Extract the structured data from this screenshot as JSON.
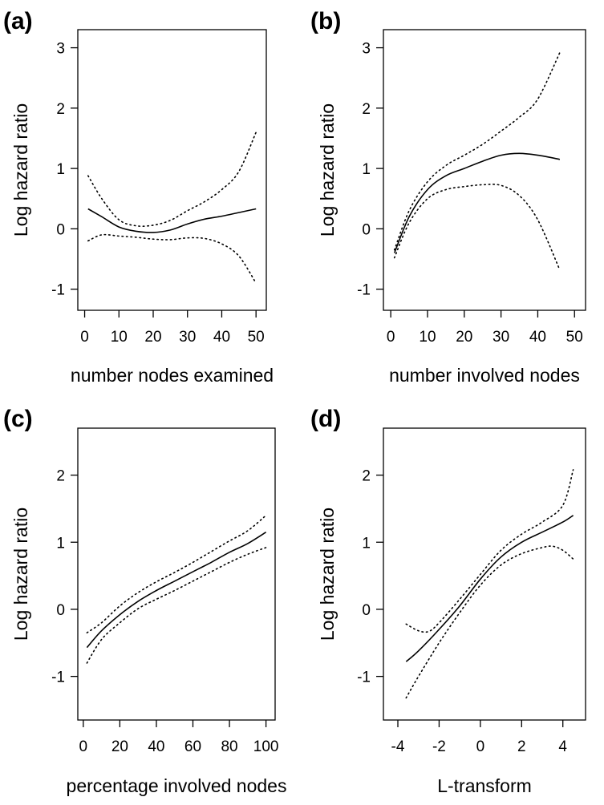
{
  "chart_data": [
    {
      "type": "line",
      "panel_label": "(a)",
      "xlabel": "number nodes examined",
      "ylabel": "Log hazard ratio",
      "xticks": [
        0,
        10,
        20,
        30,
        40,
        50
      ],
      "yticks": [
        -1,
        0,
        1,
        2,
        3
      ],
      "xlim": [
        -2,
        53
      ],
      "ylim": [
        -1.35,
        3.3
      ],
      "series": [
        {
          "role": "fit",
          "x": [
            1,
            5,
            10,
            15,
            20,
            25,
            30,
            35,
            40,
            45,
            50
          ],
          "y": [
            0.33,
            0.2,
            0.03,
            -0.04,
            -0.06,
            -0.02,
            0.08,
            0.16,
            0.21,
            0.27,
            0.33
          ]
        },
        {
          "role": "upper",
          "x": [
            1,
            5,
            10,
            15,
            20,
            25,
            30,
            35,
            40,
            45,
            50
          ],
          "y": [
            0.88,
            0.5,
            0.15,
            0.05,
            0.06,
            0.14,
            0.3,
            0.45,
            0.65,
            0.95,
            1.6
          ]
        },
        {
          "role": "lower",
          "x": [
            1,
            5,
            10,
            15,
            20,
            25,
            30,
            35,
            40,
            45,
            50
          ],
          "y": [
            -0.2,
            -0.1,
            -0.12,
            -0.14,
            -0.17,
            -0.18,
            -0.15,
            -0.16,
            -0.25,
            -0.45,
            -0.9
          ]
        }
      ]
    },
    {
      "type": "line",
      "panel_label": "(b)",
      "xlabel": "number involved nodes",
      "ylabel": "Log hazard ratio",
      "xticks": [
        0,
        10,
        20,
        30,
        40,
        50
      ],
      "yticks": [
        -1,
        0,
        1,
        2,
        3
      ],
      "xlim": [
        -2,
        53
      ],
      "ylim": [
        -1.35,
        3.3
      ],
      "series": [
        {
          "role": "fit",
          "x": [
            1,
            5,
            10,
            15,
            20,
            25,
            30,
            35,
            40,
            46
          ],
          "y": [
            -0.4,
            0.2,
            0.65,
            0.88,
            1.0,
            1.12,
            1.22,
            1.25,
            1.22,
            1.15
          ]
        },
        {
          "role": "upper",
          "x": [
            1,
            5,
            10,
            15,
            20,
            25,
            30,
            35,
            40,
            46
          ],
          "y": [
            -0.35,
            0.3,
            0.78,
            1.05,
            1.22,
            1.4,
            1.62,
            1.85,
            2.15,
            2.92
          ]
        },
        {
          "role": "lower",
          "x": [
            1,
            5,
            10,
            15,
            20,
            25,
            30,
            35,
            40,
            46
          ],
          "y": [
            -0.48,
            0.1,
            0.5,
            0.65,
            0.7,
            0.73,
            0.72,
            0.55,
            0.15,
            -0.68
          ]
        }
      ]
    },
    {
      "type": "line",
      "panel_label": "(c)",
      "xlabel": "percentage involved nodes",
      "ylabel": "Log hazard ratio",
      "xticks": [
        0,
        20,
        40,
        60,
        80,
        100
      ],
      "yticks": [
        -1,
        0,
        1,
        2
      ],
      "xlim": [
        -3,
        105
      ],
      "ylim": [
        -1.65,
        2.7
      ],
      "series": [
        {
          "role": "fit",
          "x": [
            2,
            10,
            20,
            30,
            40,
            50,
            60,
            70,
            80,
            90,
            100
          ],
          "y": [
            -0.57,
            -0.32,
            -0.08,
            0.12,
            0.28,
            0.42,
            0.56,
            0.7,
            0.85,
            0.98,
            1.15
          ]
        },
        {
          "role": "upper",
          "x": [
            2,
            10,
            20,
            30,
            40,
            50,
            60,
            70,
            80,
            90,
            100
          ],
          "y": [
            -0.35,
            -0.2,
            0.05,
            0.25,
            0.41,
            0.55,
            0.7,
            0.86,
            1.02,
            1.17,
            1.4
          ]
        },
        {
          "role": "lower",
          "x": [
            2,
            10,
            20,
            30,
            40,
            50,
            60,
            70,
            80,
            90,
            100
          ],
          "y": [
            -0.8,
            -0.45,
            -0.2,
            0.01,
            0.15,
            0.28,
            0.42,
            0.56,
            0.7,
            0.82,
            0.92
          ]
        }
      ]
    },
    {
      "type": "line",
      "panel_label": "(d)",
      "xlabel": "L-transform",
      "ylabel": "Log hazard ratio",
      "xticks": [
        -4,
        -2,
        0,
        2,
        4
      ],
      "yticks": [
        -1,
        0,
        1,
        2
      ],
      "xlim": [
        -4.7,
        5.1
      ],
      "ylim": [
        -1.65,
        2.7
      ],
      "series": [
        {
          "role": "fit",
          "x": [
            -3.6,
            -3,
            -2,
            -1,
            0,
            1,
            2,
            3,
            4,
            4.5
          ],
          "y": [
            -0.78,
            -0.62,
            -0.3,
            0.05,
            0.45,
            0.78,
            1.0,
            1.15,
            1.3,
            1.4
          ]
        },
        {
          "role": "upper",
          "x": [
            -3.6,
            -3,
            -2.5,
            -2,
            -1,
            0,
            1,
            2,
            3,
            4,
            4.5
          ],
          "y": [
            -0.22,
            -0.32,
            -0.33,
            -0.2,
            0.15,
            0.52,
            0.88,
            1.12,
            1.3,
            1.55,
            2.08
          ]
        },
        {
          "role": "lower",
          "x": [
            -3.6,
            -3,
            -2,
            -1,
            0,
            1,
            2,
            3,
            3.5,
            4,
            4.5
          ],
          "y": [
            -1.32,
            -1.0,
            -0.5,
            -0.05,
            0.36,
            0.66,
            0.83,
            0.92,
            0.94,
            0.88,
            0.75
          ]
        }
      ]
    }
  ]
}
